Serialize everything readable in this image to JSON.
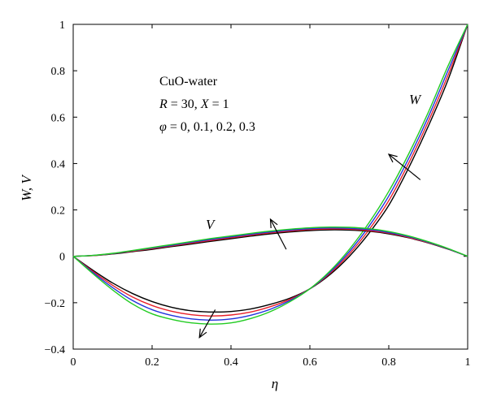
{
  "chart_data": {
    "type": "line",
    "xlabel": "η",
    "ylabel": "W, V",
    "xlim": [
      0,
      1
    ],
    "ylim": [
      -0.4,
      1
    ],
    "x_ticks": [
      0,
      0.2,
      0.4,
      0.6,
      0.8,
      1
    ],
    "y_ticks": [
      -0.4,
      -0.2,
      0,
      0.2,
      0.4,
      0.6,
      0.8,
      1
    ],
    "x_tick_labels": [
      "0",
      "0.2",
      "0.4",
      "0.6",
      "0.8",
      "1"
    ],
    "y_tick_labels": [
      "−0.4",
      "−0.2",
      "0",
      "0.2",
      "0.4",
      "0.6",
      "0.8",
      "1"
    ],
    "grid": false,
    "annotations": {
      "fluid": "CuO-water",
      "params_prefix": "R",
      "params_mid": " = 30, ",
      "params_x": "X",
      "params_suffix": " = 1",
      "phi_symbol": "φ",
      "phi_values": " = 0, 0.1, 0.2, 0.3"
    },
    "series_labels": {
      "W": "W",
      "V": "V"
    },
    "colors": {
      "phi_0": "#000000",
      "phi_0.1": "#e8202a",
      "phi_0.2": "#2233dd",
      "phi_0.3": "#22cc22"
    },
    "x": [
      0,
      0.05,
      0.1,
      0.15,
      0.2,
      0.25,
      0.3,
      0.35,
      0.4,
      0.45,
      0.5,
      0.55,
      0.6,
      0.65,
      0.7,
      0.75,
      0.8,
      0.85,
      0.9,
      0.95,
      1
    ],
    "series": [
      {
        "family": "W",
        "phi": "0",
        "color": "#000000",
        "values": [
          0,
          -0.06,
          -0.115,
          -0.16,
          -0.195,
          -0.22,
          -0.235,
          -0.24,
          -0.238,
          -0.227,
          -0.207,
          -0.18,
          -0.14,
          -0.08,
          0,
          0.1,
          0.22,
          0.38,
          0.56,
          0.76,
          1
        ]
      },
      {
        "family": "W",
        "phi": "0.1",
        "color": "#e8202a",
        "values": [
          0,
          -0.065,
          -0.125,
          -0.175,
          -0.212,
          -0.237,
          -0.252,
          -0.257,
          -0.253,
          -0.24,
          -0.217,
          -0.185,
          -0.14,
          -0.075,
          0.01,
          0.115,
          0.24,
          0.4,
          0.58,
          0.78,
          1
        ]
      },
      {
        "family": "W",
        "phi": "0.2",
        "color": "#2233dd",
        "values": [
          0,
          -0.07,
          -0.135,
          -0.19,
          -0.23,
          -0.255,
          -0.27,
          -0.275,
          -0.27,
          -0.254,
          -0.228,
          -0.19,
          -0.14,
          -0.07,
          0.02,
          0.13,
          0.26,
          0.42,
          0.6,
          0.8,
          1
        ]
      },
      {
        "family": "W",
        "phi": "0.3",
        "color": "#22cc22",
        "values": [
          0,
          -0.075,
          -0.145,
          -0.205,
          -0.248,
          -0.272,
          -0.287,
          -0.292,
          -0.287,
          -0.268,
          -0.238,
          -0.195,
          -0.14,
          -0.065,
          0.03,
          0.145,
          0.28,
          0.44,
          0.62,
          0.82,
          1
        ]
      },
      {
        "family": "V",
        "phi": "0",
        "color": "#000000",
        "values": [
          0,
          0.003,
          0.01,
          0.02,
          0.03,
          0.042,
          0.053,
          0.065,
          0.076,
          0.087,
          0.097,
          0.105,
          0.111,
          0.114,
          0.113,
          0.108,
          0.097,
          0.08,
          0.058,
          0.031,
          0
        ]
      },
      {
        "family": "V",
        "phi": "0.1",
        "color": "#e8202a",
        "values": [
          0,
          0.003,
          0.011,
          0.022,
          0.033,
          0.045,
          0.057,
          0.069,
          0.08,
          0.091,
          0.101,
          0.109,
          0.115,
          0.118,
          0.117,
          0.111,
          0.1,
          0.082,
          0.059,
          0.032,
          0
        ]
      },
      {
        "family": "V",
        "phi": "0.2",
        "color": "#2233dd",
        "values": [
          0,
          0.004,
          0.012,
          0.024,
          0.036,
          0.048,
          0.061,
          0.073,
          0.084,
          0.095,
          0.105,
          0.113,
          0.119,
          0.122,
          0.121,
          0.115,
          0.103,
          0.085,
          0.061,
          0.033,
          0
        ]
      },
      {
        "family": "V",
        "phi": "0.3",
        "color": "#22cc22",
        "values": [
          0,
          0.004,
          0.013,
          0.025,
          0.038,
          0.051,
          0.064,
          0.077,
          0.088,
          0.099,
          0.109,
          0.117,
          0.123,
          0.126,
          0.125,
          0.119,
          0.107,
          0.088,
          0.063,
          0.034,
          0
        ]
      }
    ],
    "arrows": [
      {
        "name": "w-phi-arrow",
        "from": [
          0.88,
          0.33
        ],
        "to": [
          0.8,
          0.44
        ]
      },
      {
        "name": "v-phi-arrow",
        "from": [
          0.54,
          0.03
        ],
        "to": [
          0.5,
          0.16
        ]
      },
      {
        "name": "w-min-phi-arrow",
        "from": [
          0.36,
          -0.23
        ],
        "to": [
          0.32,
          -0.35
        ]
      }
    ]
  }
}
